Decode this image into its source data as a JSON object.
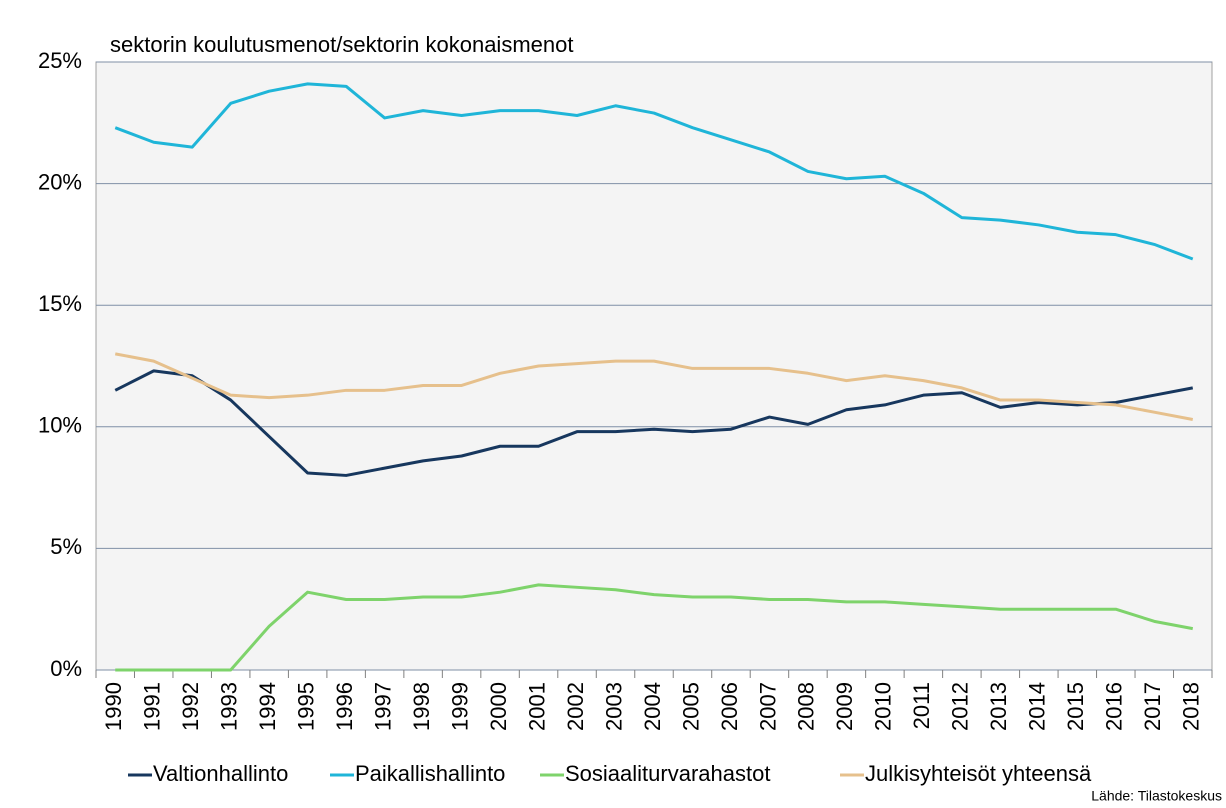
{
  "chart_data": {
    "type": "line",
    "title": "sektorin koulutusmenot/sektorin  kokonaismenot",
    "source": "Lähde: Tilastokeskus",
    "categories": [
      "1990",
      "1991",
      "1992",
      "1993",
      "1994",
      "1995",
      "1996",
      "1997",
      "1998",
      "1999",
      "2000",
      "2001",
      "2002",
      "2003",
      "2004",
      "2005",
      "2006",
      "2007",
      "2008",
      "2009",
      "2010",
      "2011",
      "2012",
      "2013",
      "2014",
      "2015",
      "2016",
      "2017",
      "2018"
    ],
    "series": [
      {
        "name": "Valtionhallinto",
        "color": "#17375e",
        "values": [
          11.5,
          12.3,
          12.1,
          11.1,
          9.6,
          8.1,
          8.0,
          8.3,
          8.6,
          8.8,
          9.2,
          9.2,
          9.8,
          9.8,
          9.9,
          9.8,
          9.9,
          10.4,
          10.1,
          10.7,
          10.9,
          11.3,
          11.4,
          10.8,
          11.0,
          10.9,
          11.0,
          11.3,
          11.6
        ]
      },
      {
        "name": "Paikallishallinto",
        "color": "#1fb5d8",
        "values": [
          22.3,
          21.7,
          21.5,
          23.3,
          23.8,
          24.1,
          24.0,
          22.7,
          23.0,
          22.8,
          23.0,
          23.0,
          22.8,
          23.2,
          22.9,
          22.3,
          21.8,
          21.3,
          20.5,
          20.2,
          20.3,
          19.6,
          18.6,
          18.5,
          18.3,
          18.0,
          17.9,
          17.5,
          16.9
        ]
      },
      {
        "name": "Sosiaaliturvarahastot",
        "color": "#7ed36b",
        "values": [
          0,
          0,
          0,
          0,
          1.8,
          3.2,
          2.9,
          2.9,
          3.0,
          3.0,
          3.2,
          3.5,
          3.4,
          3.3,
          3.1,
          3.0,
          3.0,
          2.9,
          2.9,
          2.8,
          2.8,
          2.7,
          2.6,
          2.5,
          2.5,
          2.5,
          2.5,
          2.0,
          1.7
        ]
      },
      {
        "name": "Julkisyhteisöt yhteensä",
        "color": "#e6c08c",
        "values": [
          13.0,
          12.7,
          12.0,
          11.3,
          11.2,
          11.3,
          11.5,
          11.5,
          11.7,
          11.7,
          12.2,
          12.5,
          12.6,
          12.7,
          12.7,
          12.4,
          12.4,
          12.4,
          12.2,
          11.9,
          12.1,
          11.9,
          11.6,
          11.1,
          11.1,
          11.0,
          10.9,
          10.6,
          10.3
        ]
      }
    ],
    "ylim": [
      0,
      25
    ],
    "yticks": [
      {
        "value": 0,
        "label": "0%"
      },
      {
        "value": 5,
        "label": "5%"
      },
      {
        "value": 10,
        "label": "10%"
      },
      {
        "value": 15,
        "label": "15%"
      },
      {
        "value": 20,
        "label": "20%"
      },
      {
        "value": 25,
        "label": "25%"
      }
    ],
    "grid": true,
    "legend": "bottom"
  }
}
